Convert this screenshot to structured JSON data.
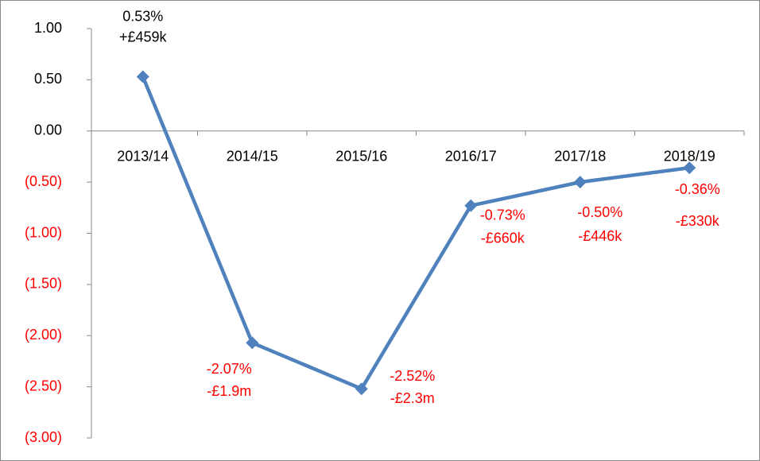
{
  "chart_data": {
    "type": "line",
    "categories": [
      "2013/14",
      "2014/15",
      "2015/16",
      "2016/17",
      "2017/18",
      "2018/19"
    ],
    "series": [
      {
        "color": "#4f81bd",
        "values": [
          0.53,
          -2.07,
          -2.52,
          -0.73,
          -0.5,
          -0.36
        ],
        "value_labels": [
          "0.53%",
          "-2.07%",
          "-2.52%",
          "-0.73%",
          "-0.50%",
          "-0.36%"
        ],
        "amount_labels": [
          "+£459k",
          "-£1.9m",
          "-£2.3m",
          "-£660k",
          "-£446k",
          "-£330k"
        ]
      }
    ],
    "ylim": [
      -3,
      1
    ],
    "yticks": [
      {
        "value": 1,
        "label": "1.00"
      },
      {
        "value": 0.5,
        "label": "0.50"
      },
      {
        "value": 0,
        "label": "0.00"
      },
      {
        "value": -0.5,
        "label": "(0.50)"
      },
      {
        "value": -1,
        "label": "(1.00)"
      },
      {
        "value": -1.5,
        "label": "(1.50)"
      },
      {
        "value": -2,
        "label": "(2.00)"
      },
      {
        "value": -2.5,
        "label": "(2.50)"
      },
      {
        "value": -3,
        "label": "(3.00)"
      }
    ],
    "negative_color": "#ff0000",
    "grid": false
  }
}
